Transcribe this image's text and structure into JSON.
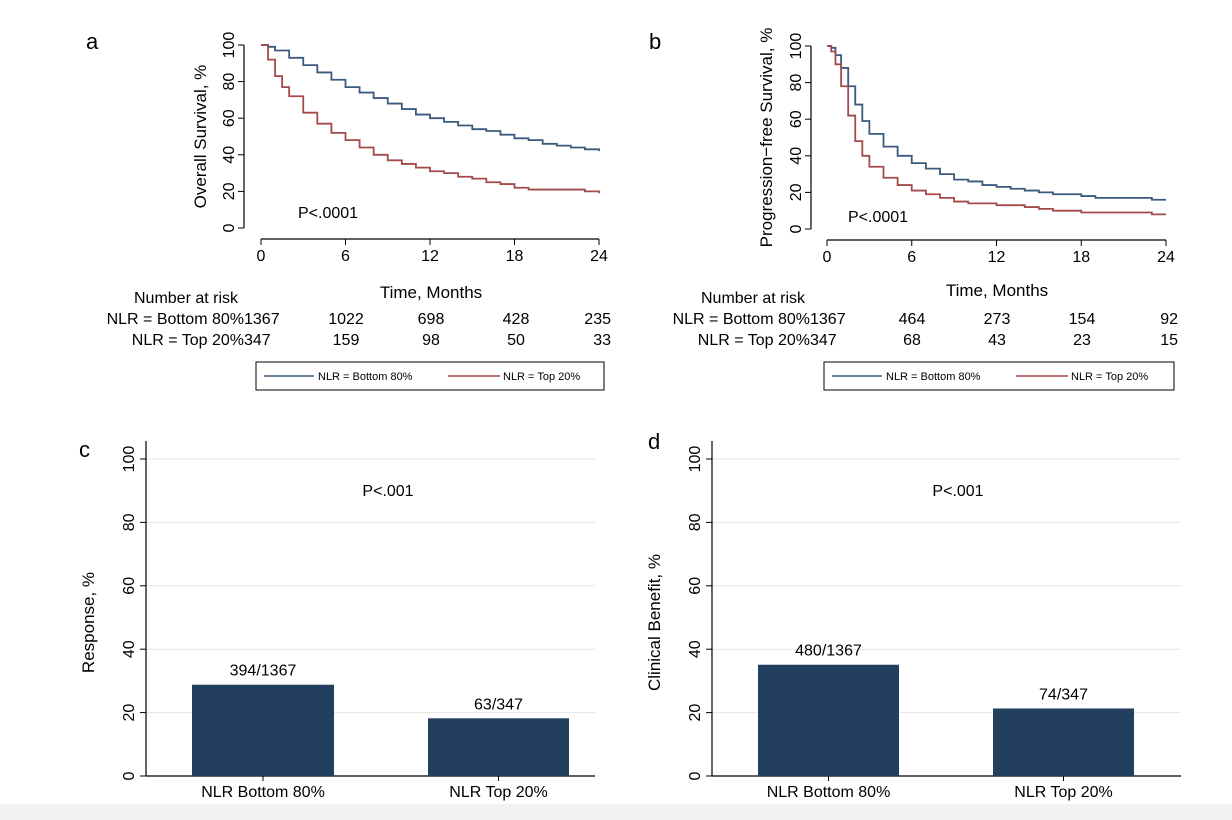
{
  "colors": {
    "blue": "#3b5a7e",
    "red": "#a34a4a",
    "bar": "#233f60",
    "grid": "#e4e4e4"
  },
  "chart_data": [
    {
      "panel_label": "a",
      "type": "line",
      "ylabel": "Overall Survival, %",
      "xlabel": "Time, Months",
      "xlim": [
        0,
        24
      ],
      "ylim": [
        0,
        100
      ],
      "xticks": [
        0,
        6,
        12,
        18,
        24
      ],
      "yticks": [
        0,
        20,
        40,
        60,
        80,
        100
      ],
      "pvalue": "P<.0001",
      "series": [
        {
          "name": "NLR = Bottom 80%",
          "color": "blue",
          "x": [
            0,
            0.5,
            1,
            2,
            3,
            4,
            5,
            6,
            7,
            8,
            9,
            10,
            11,
            12,
            13,
            14,
            15,
            16,
            17,
            18,
            19,
            20,
            21,
            22,
            23,
            24
          ],
          "y": [
            100,
            99,
            97,
            93,
            89,
            85,
            81,
            77,
            74,
            71,
            68,
            65,
            62,
            60,
            58,
            56,
            54,
            53,
            51,
            49,
            48,
            46,
            45,
            44,
            43,
            42
          ]
        },
        {
          "name": "NLR = Top 20%",
          "color": "red",
          "x": [
            0,
            0.5,
            1,
            1.5,
            2,
            3,
            4,
            5,
            6,
            7,
            8,
            9,
            10,
            11,
            12,
            13,
            14,
            15,
            16,
            17,
            18,
            19,
            20,
            21,
            22,
            23,
            24
          ],
          "y": [
            100,
            92,
            83,
            77,
            72,
            63,
            57,
            52,
            48,
            44,
            40,
            37,
            35,
            33,
            31,
            30,
            28,
            27,
            25,
            24,
            22,
            21,
            21,
            21,
            21,
            20,
            19
          ]
        }
      ],
      "risk_table": {
        "title": "Number at risk",
        "rows": [
          {
            "label": "NLR = Bottom 80%",
            "values": [
              "1367",
              "1022",
              "698",
              "428",
              "235"
            ]
          },
          {
            "label": "NLR = Top 20%",
            "values": [
              "347",
              "159",
              "98",
              "50",
              "33"
            ]
          }
        ]
      },
      "legend": [
        "NLR = Bottom 80%",
        "NLR = Top 20%"
      ]
    },
    {
      "panel_label": "b",
      "type": "line",
      "ylabel": "Progression−free Survival, %",
      "xlabel": "Time, Months",
      "xlim": [
        0,
        24
      ],
      "ylim": [
        0,
        100
      ],
      "xticks": [
        0,
        6,
        12,
        18,
        24
      ],
      "yticks": [
        0,
        20,
        40,
        60,
        80,
        100
      ],
      "pvalue": "P<.0001",
      "series": [
        {
          "name": "NLR = Bottom 80%",
          "color": "blue",
          "x": [
            0,
            0.3,
            0.6,
            1,
            1.5,
            2,
            2.5,
            3,
            4,
            5,
            6,
            7,
            8,
            9,
            10,
            11,
            12,
            13,
            14,
            15,
            16,
            17,
            18,
            19,
            20,
            21,
            22,
            23,
            24
          ],
          "y": [
            100,
            99,
            95,
            88,
            78,
            68,
            59,
            52,
            45,
            40,
            36,
            33,
            30,
            27,
            26,
            24,
            23,
            22,
            21,
            20,
            19,
            19,
            18,
            17,
            17,
            17,
            17,
            16,
            16
          ]
        },
        {
          "name": "NLR = Top 20%",
          "color": "red",
          "x": [
            0,
            0.3,
            0.6,
            1,
            1.5,
            2,
            2.5,
            3,
            4,
            5,
            6,
            7,
            8,
            9,
            10,
            11,
            12,
            13,
            14,
            15,
            16,
            17,
            18,
            19,
            20,
            21,
            22,
            23,
            24
          ],
          "y": [
            100,
            97,
            90,
            78,
            62,
            48,
            40,
            34,
            28,
            24,
            21,
            19,
            17,
            15,
            14,
            14,
            13,
            13,
            12,
            11,
            10,
            10,
            9,
            9,
            9,
            9,
            9,
            8,
            8
          ]
        }
      ],
      "risk_table": {
        "title": "Number at risk",
        "rows": [
          {
            "label": "NLR = Bottom 80%",
            "values": [
              "1367",
              "464",
              "273",
              "154",
              "92"
            ]
          },
          {
            "label": "NLR = Top 20%",
            "values": [
              "347",
              "68",
              "43",
              "23",
              "15"
            ]
          }
        ]
      },
      "legend": [
        "NLR = Bottom 80%",
        "NLR = Top 20%"
      ]
    },
    {
      "panel_label": "c",
      "type": "bar",
      "ylabel": "Response, %",
      "ylim": [
        0,
        100
      ],
      "yticks": [
        0,
        20,
        40,
        60,
        80,
        100
      ],
      "grid": true,
      "pvalue": "P<.001",
      "categories": [
        "NLR Bottom 80%",
        "NLR Top 20%"
      ],
      "values": [
        28.8,
        18.2
      ],
      "data_labels": [
        "394/1367",
        "63/347"
      ]
    },
    {
      "panel_label": "d",
      "type": "bar",
      "ylabel": "Clinical Benefit, %",
      "ylim": [
        0,
        100
      ],
      "yticks": [
        0,
        20,
        40,
        60,
        80,
        100
      ],
      "grid": true,
      "pvalue": "P<.001",
      "categories": [
        "NLR Bottom 80%",
        "NLR Top 20%"
      ],
      "values": [
        35.1,
        21.3
      ],
      "data_labels": [
        "480/1367",
        "74/347"
      ]
    }
  ]
}
